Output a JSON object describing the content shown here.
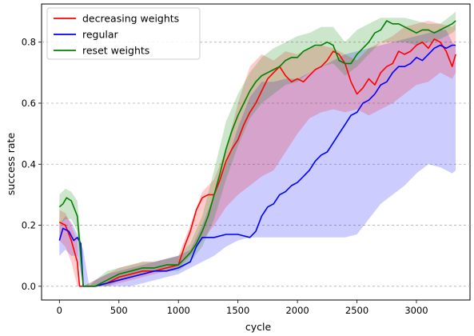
{
  "chart_data": {
    "type": "line",
    "title": "",
    "xlabel": "cycle",
    "ylabel": "success rate",
    "xlim": [
      -150,
      3450
    ],
    "ylim": [
      -0.045,
      0.925
    ],
    "xticks": [
      0,
      500,
      1000,
      1500,
      2000,
      2500,
      3000
    ],
    "xtick_labels": [
      "0",
      "500",
      "1000",
      "1500",
      "2000",
      "2500",
      "3000"
    ],
    "yticks": [
      0.0,
      0.2,
      0.4,
      0.6,
      0.8
    ],
    "ytick_labels": [
      "0.0",
      "0.2",
      "0.4",
      "0.6",
      "0.8"
    ],
    "grid": "horizontal dashed",
    "legend_position": "top-left",
    "series": [
      {
        "name": "decreasing weights",
        "color": "#ff0000",
        "x": [
          0,
          50,
          100,
          150,
          170,
          200,
          300,
          400,
          500,
          600,
          700,
          800,
          900,
          1000,
          1050,
          1100,
          1150,
          1200,
          1250,
          1300,
          1350,
          1400,
          1450,
          1500,
          1550,
          1600,
          1650,
          1700,
          1750,
          1800,
          1850,
          1900,
          1950,
          2000,
          2050,
          2100,
          2150,
          2200,
          2250,
          2300,
          2350,
          2400,
          2450,
          2500,
          2550,
          2600,
          2650,
          2700,
          2750,
          2800,
          2850,
          2900,
          2950,
          3000,
          3050,
          3100,
          3150,
          3200,
          3250,
          3300,
          3330
        ],
        "y": [
          0.21,
          0.2,
          0.15,
          0.08,
          0.0,
          0.0,
          0.0,
          0.01,
          0.03,
          0.04,
          0.05,
          0.05,
          0.06,
          0.07,
          0.13,
          0.18,
          0.25,
          0.29,
          0.3,
          0.3,
          0.35,
          0.41,
          0.45,
          0.48,
          0.53,
          0.57,
          0.6,
          0.64,
          0.68,
          0.7,
          0.72,
          0.69,
          0.67,
          0.68,
          0.67,
          0.69,
          0.71,
          0.72,
          0.74,
          0.77,
          0.76,
          0.73,
          0.67,
          0.63,
          0.65,
          0.68,
          0.66,
          0.7,
          0.72,
          0.73,
          0.77,
          0.76,
          0.77,
          0.79,
          0.8,
          0.78,
          0.81,
          0.8,
          0.77,
          0.72,
          0.76
        ]
      },
      {
        "name": "regular",
        "color": "#0000ff",
        "x": [
          0,
          30,
          80,
          120,
          150,
          180,
          200,
          300,
          400,
          500,
          600,
          700,
          800,
          900,
          1000,
          1100,
          1150,
          1200,
          1250,
          1300,
          1400,
          1500,
          1600,
          1650,
          1700,
          1750,
          1800,
          1850,
          1900,
          1950,
          2000,
          2050,
          2100,
          2150,
          2200,
          2250,
          2300,
          2350,
          2400,
          2450,
          2500,
          2550,
          2600,
          2650,
          2700,
          2750,
          2800,
          2850,
          2900,
          2950,
          3000,
          3050,
          3100,
          3150,
          3200,
          3250,
          3300,
          3330
        ],
        "y": [
          0.15,
          0.19,
          0.18,
          0.15,
          0.16,
          0.14,
          0.0,
          0.0,
          0.01,
          0.02,
          0.03,
          0.04,
          0.05,
          0.05,
          0.06,
          0.08,
          0.13,
          0.16,
          0.16,
          0.16,
          0.17,
          0.17,
          0.16,
          0.18,
          0.23,
          0.26,
          0.27,
          0.3,
          0.31,
          0.33,
          0.34,
          0.36,
          0.38,
          0.41,
          0.43,
          0.44,
          0.47,
          0.5,
          0.53,
          0.56,
          0.57,
          0.6,
          0.61,
          0.63,
          0.66,
          0.67,
          0.7,
          0.72,
          0.72,
          0.73,
          0.75,
          0.74,
          0.76,
          0.78,
          0.79,
          0.78,
          0.79,
          0.79
        ]
      },
      {
        "name": "reset weights",
        "color": "#008000",
        "x": [
          0,
          30,
          60,
          100,
          150,
          180,
          200,
          300,
          400,
          500,
          600,
          700,
          800,
          900,
          1000,
          1050,
          1100,
          1150,
          1200,
          1250,
          1300,
          1350,
          1400,
          1450,
          1500,
          1550,
          1600,
          1650,
          1700,
          1750,
          1800,
          1850,
          1900,
          1950,
          2000,
          2050,
          2100,
          2150,
          2200,
          2250,
          2300,
          2350,
          2400,
          2450,
          2500,
          2550,
          2600,
          2650,
          2700,
          2750,
          2800,
          2850,
          2900,
          2950,
          3000,
          3050,
          3100,
          3150,
          3200,
          3250,
          3300,
          3330
        ],
        "y": [
          0.26,
          0.27,
          0.29,
          0.28,
          0.23,
          0.1,
          0.0,
          0.0,
          0.02,
          0.04,
          0.05,
          0.06,
          0.06,
          0.07,
          0.07,
          0.09,
          0.11,
          0.14,
          0.18,
          0.23,
          0.3,
          0.37,
          0.45,
          0.51,
          0.56,
          0.6,
          0.64,
          0.67,
          0.69,
          0.7,
          0.71,
          0.72,
          0.74,
          0.75,
          0.75,
          0.77,
          0.78,
          0.79,
          0.79,
          0.8,
          0.79,
          0.74,
          0.73,
          0.73,
          0.76,
          0.78,
          0.8,
          0.83,
          0.84,
          0.87,
          0.86,
          0.86,
          0.85,
          0.84,
          0.83,
          0.84,
          0.84,
          0.83,
          0.84,
          0.85,
          0.86,
          0.87
        ]
      }
    ],
    "bands": [
      {
        "series": "regular",
        "color": "#0000ff",
        "x": [
          0,
          50,
          100,
          150,
          200,
          250,
          300,
          400,
          500,
          600,
          700,
          800,
          900,
          1000,
          1100,
          1200,
          1300,
          1400,
          1500,
          1600,
          1700,
          1800,
          1900,
          2000,
          2100,
          2200,
          2300,
          2400,
          2500,
          2600,
          2700,
          2800,
          2900,
          3000,
          3100,
          3200,
          3250,
          3300,
          3330
        ],
        "lower": [
          0.1,
          0.12,
          0.1,
          0.1,
          0.0,
          0.0,
          0.0,
          0.0,
          0.0,
          0.0,
          0.01,
          0.02,
          0.03,
          0.04,
          0.06,
          0.08,
          0.1,
          0.13,
          0.15,
          0.16,
          0.16,
          0.16,
          0.16,
          0.16,
          0.16,
          0.16,
          0.16,
          0.16,
          0.17,
          0.22,
          0.27,
          0.3,
          0.33,
          0.37,
          0.4,
          0.39,
          0.38,
          0.37,
          0.38
        ],
        "upper": [
          0.2,
          0.23,
          0.21,
          0.17,
          0.12,
          0.0,
          0.02,
          0.04,
          0.05,
          0.06,
          0.07,
          0.08,
          0.09,
          0.1,
          0.12,
          0.2,
          0.3,
          0.4,
          0.52,
          0.62,
          0.67,
          0.67,
          0.68,
          0.68,
          0.7,
          0.72,
          0.74,
          0.76,
          0.77,
          0.78,
          0.79,
          0.8,
          0.81,
          0.82,
          0.83,
          0.84,
          0.84,
          0.8,
          0.79
        ]
      },
      {
        "series": "decreasing weights",
        "color": "#ff0000",
        "x": [
          0,
          50,
          100,
          150,
          170,
          200,
          300,
          400,
          500,
          600,
          700,
          800,
          900,
          1000,
          1100,
          1200,
          1300,
          1400,
          1500,
          1600,
          1700,
          1800,
          1900,
          2000,
          2100,
          2200,
          2300,
          2400,
          2500,
          2600,
          2700,
          2800,
          2900,
          3000,
          3100,
          3200,
          3300,
          3330
        ],
        "lower": [
          0.15,
          0.13,
          0.08,
          0.0,
          0.0,
          0.0,
          0.0,
          0.0,
          0.01,
          0.02,
          0.03,
          0.04,
          0.05,
          0.06,
          0.1,
          0.15,
          0.2,
          0.26,
          0.3,
          0.33,
          0.36,
          0.38,
          0.44,
          0.5,
          0.55,
          0.57,
          0.58,
          0.57,
          0.58,
          0.56,
          0.58,
          0.6,
          0.63,
          0.66,
          0.67,
          0.7,
          0.68,
          0.7
        ],
        "upper": [
          0.25,
          0.24,
          0.2,
          0.15,
          0.0,
          0.0,
          0.02,
          0.04,
          0.06,
          0.07,
          0.08,
          0.08,
          0.09,
          0.1,
          0.2,
          0.31,
          0.35,
          0.45,
          0.6,
          0.72,
          0.76,
          0.74,
          0.77,
          0.76,
          0.78,
          0.79,
          0.78,
          0.76,
          0.74,
          0.78,
          0.8,
          0.82,
          0.85,
          0.86,
          0.87,
          0.86,
          0.85,
          0.86
        ]
      },
      {
        "series": "reset weights",
        "color": "#008000",
        "x": [
          0,
          50,
          100,
          150,
          180,
          200,
          300,
          400,
          500,
          600,
          700,
          800,
          900,
          1000,
          1100,
          1200,
          1300,
          1400,
          1500,
          1600,
          1700,
          1800,
          1900,
          2000,
          2100,
          2200,
          2300,
          2400,
          2500,
          2600,
          2700,
          2800,
          2900,
          3000,
          3100,
          3200,
          3300,
          3330
        ],
        "lower": [
          0.2,
          0.22,
          0.22,
          0.18,
          0.05,
          0.0,
          0.0,
          0.0,
          0.02,
          0.03,
          0.04,
          0.05,
          0.05,
          0.05,
          0.08,
          0.13,
          0.22,
          0.35,
          0.46,
          0.55,
          0.6,
          0.63,
          0.66,
          0.67,
          0.7,
          0.72,
          0.73,
          0.69,
          0.72,
          0.76,
          0.8,
          0.8,
          0.8,
          0.79,
          0.8,
          0.81,
          0.83,
          0.84
        ],
        "upper": [
          0.3,
          0.32,
          0.31,
          0.28,
          0.15,
          0.0,
          0.02,
          0.05,
          0.06,
          0.07,
          0.08,
          0.08,
          0.09,
          0.1,
          0.14,
          0.23,
          0.38,
          0.54,
          0.63,
          0.7,
          0.75,
          0.78,
          0.8,
          0.82,
          0.83,
          0.85,
          0.85,
          0.8,
          0.84,
          0.86,
          0.88,
          0.88,
          0.88,
          0.87,
          0.86,
          0.86,
          0.89,
          0.9
        ]
      }
    ]
  }
}
